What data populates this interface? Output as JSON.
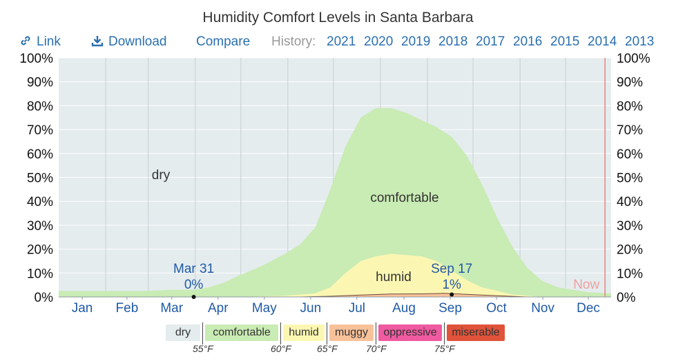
{
  "title": "Humidity Comfort Levels in Santa Barbara",
  "toolbar": {
    "link": "Link",
    "download": "Download",
    "compare": "Compare",
    "history_label": "History:",
    "years": [
      "2021",
      "2020",
      "2019",
      "2018",
      "2017",
      "2016",
      "2015",
      "2014",
      "2013"
    ]
  },
  "legend": {
    "items": [
      {
        "label": "dry",
        "color": "#e4ecee"
      },
      {
        "label": "comfortable",
        "color": "#c9ebb4"
      },
      {
        "label": "humid",
        "color": "#fbf7b3"
      },
      {
        "label": "muggy",
        "color": "#f7c29a"
      },
      {
        "label": "oppressive",
        "color": "#ef5aa0"
      },
      {
        "label": "miserable",
        "color": "#e0533a"
      }
    ],
    "thresholds": [
      "55°F",
      "60°F",
      "65°F",
      "70°F",
      "75°F"
    ]
  },
  "chart_data": {
    "type": "area",
    "title": "Humidity Comfort Levels in Santa Barbara",
    "ylim": [
      0,
      100
    ],
    "yticks": [
      "0%",
      "10%",
      "20%",
      "30%",
      "40%",
      "50%",
      "60%",
      "70%",
      "80%",
      "90%",
      "100%"
    ],
    "months": [
      "Jan",
      "Feb",
      "Mar",
      "Apr",
      "May",
      "Jun",
      "Jul",
      "Aug",
      "Sep",
      "Oct",
      "Nov",
      "Dec"
    ],
    "x_day_range": [
      1,
      365
    ],
    "region_labels": {
      "dry": "dry",
      "comfortable": "comfortable",
      "humid": "humid"
    },
    "now_label": "Now",
    "grid": true,
    "series": [
      {
        "name": "comfortable",
        "color": "#c9ebb4",
        "x": [
          1,
          15,
          31,
          45,
          60,
          75,
          90,
          100,
          110,
          120,
          135,
          150,
          160,
          170,
          180,
          190,
          200,
          210,
          220,
          230,
          240,
          250,
          260,
          270,
          280,
          290,
          300,
          310,
          320,
          330,
          340,
          350,
          365
        ],
        "values": [
          2.5,
          2.5,
          2.5,
          2.5,
          2.5,
          3,
          3,
          4,
          6,
          9,
          13,
          18,
          22,
          29,
          45,
          63,
          75,
          79,
          79,
          77,
          74,
          71,
          67,
          59,
          47,
          33,
          21,
          12,
          6.5,
          4,
          3,
          2,
          1.5
        ]
      },
      {
        "name": "humid",
        "color": "#fbf7b3",
        "x": [
          1,
          90,
          120,
          150,
          170,
          180,
          190,
          200,
          210,
          220,
          230,
          240,
          250,
          260,
          270,
          280,
          290,
          300,
          310,
          320,
          365
        ],
        "values": [
          0,
          0,
          0,
          0.5,
          1.5,
          4,
          10,
          15,
          17,
          18,
          17.5,
          17,
          15,
          11,
          7,
          4,
          2.5,
          1,
          0.5,
          0,
          0
        ]
      },
      {
        "name": "muggy",
        "color": "#f7c29a",
        "x": [
          1,
          160,
          180,
          200,
          220,
          240,
          255,
          270,
          290,
          310,
          365
        ],
        "values": [
          0,
          0,
          0.3,
          0.8,
          1.2,
          1.3,
          1.5,
          1.1,
          0.5,
          0,
          0
        ]
      }
    ],
    "annotations": [
      {
        "label": "Mar 31",
        "value_label": "0%",
        "x": 90,
        "y": 0
      },
      {
        "label": "Sep 17",
        "value_label": "1%",
        "x": 260,
        "y": 1
      }
    ],
    "now_day": 361
  }
}
